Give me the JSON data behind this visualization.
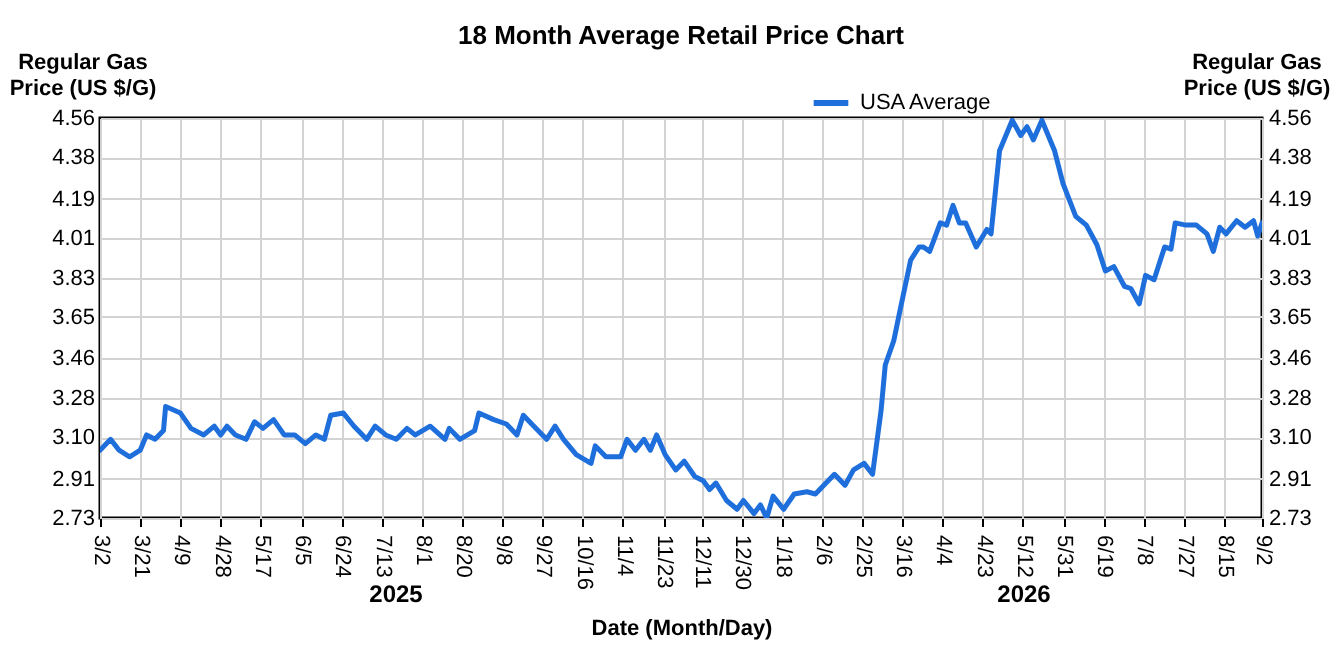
{
  "chart_data": {
    "type": "line",
    "title": "18 Month Average Retail Price Chart",
    "xlabel": "Date (Month/Day)",
    "ylabel": "Regular Gas Price (US $/G)",
    "y2label": "Regular Gas Price (US $/G)",
    "annotations": [
      "2025",
      "2026"
    ],
    "x": [
      "2025-03-02",
      "2025-03-07",
      "2025-03-11",
      "2025-03-16",
      "2025-03-21",
      "2025-03-24",
      "2025-03-28",
      "2025-04-01",
      "2025-04-02",
      "2025-04-09",
      "2025-04-14",
      "2025-04-20",
      "2025-04-25",
      "2025-04-28",
      "2025-05-01",
      "2025-05-05",
      "2025-05-10",
      "2025-05-14",
      "2025-05-18",
      "2025-05-23",
      "2025-05-28",
      "2025-06-02",
      "2025-06-07",
      "2025-06-12",
      "2025-06-16",
      "2025-06-19",
      "2025-06-25",
      "2025-06-30",
      "2025-07-06",
      "2025-07-10",
      "2025-07-15",
      "2025-07-20",
      "2025-07-25",
      "2025-07-29",
      "2025-08-05",
      "2025-08-12",
      "2025-08-14",
      "2025-08-19",
      "2025-08-26",
      "2025-08-28",
      "2025-09-04",
      "2025-09-10",
      "2025-09-15",
      "2025-09-18",
      "2025-09-23",
      "2025-09-29",
      "2025-10-03",
      "2025-10-07",
      "2025-10-13",
      "2025-10-20",
      "2025-10-22",
      "2025-10-27",
      "2025-11-03",
      "2025-11-06",
      "2025-11-10",
      "2025-11-14",
      "2025-11-17",
      "2025-11-20",
      "2025-11-24",
      "2025-11-29",
      "2025-12-03",
      "2025-12-08",
      "2025-12-12",
      "2025-12-15",
      "2025-12-18",
      "2025-12-23",
      "2025-12-28",
      "2025-12-31",
      "2026-01-05",
      "2026-01-08",
      "2026-01-11",
      "2026-01-14",
      "2026-01-19",
      "2026-01-24",
      "2026-01-30",
      "2026-02-03",
      "2026-02-08",
      "2026-02-12",
      "2026-02-17",
      "2026-02-21",
      "2026-02-26",
      "2026-03-02",
      "2026-03-06",
      "2026-03-08",
      "2026-03-12",
      "2026-03-15",
      "2026-03-20",
      "2026-03-24",
      "2026-03-26",
      "2026-03-29",
      "2026-04-03",
      "2026-04-06",
      "2026-04-09",
      "2026-04-12",
      "2026-04-15",
      "2026-04-20",
      "2026-04-25",
      "2026-04-27",
      "2026-05-01",
      "2026-05-07",
      "2026-05-11",
      "2026-05-14",
      "2026-05-17",
      "2026-05-21",
      "2026-05-27",
      "2026-05-31",
      "2026-06-06",
      "2026-06-11",
      "2026-06-16",
      "2026-06-20",
      "2026-06-24",
      "2026-06-29",
      "2026-07-02",
      "2026-07-06",
      "2026-07-09",
      "2026-07-13",
      "2026-07-18",
      "2026-07-21",
      "2026-07-23",
      "2026-07-28",
      "2026-08-02",
      "2026-08-07",
      "2026-08-10",
      "2026-08-13",
      "2026-08-16",
      "2026-08-21",
      "2026-08-25",
      "2026-08-29",
      "2026-08-31",
      "2026-09-02"
    ],
    "series": [
      {
        "name": "USA Average",
        "color": "#1e6fdc",
        "values": [
          3.04,
          3.09,
          3.04,
          3.01,
          3.04,
          3.11,
          3.09,
          3.13,
          3.24,
          3.21,
          3.14,
          3.11,
          3.15,
          3.11,
          3.15,
          3.11,
          3.09,
          3.17,
          3.14,
          3.18,
          3.11,
          3.11,
          3.07,
          3.11,
          3.09,
          3.2,
          3.21,
          3.15,
          3.09,
          3.15,
          3.11,
          3.09,
          3.14,
          3.11,
          3.15,
          3.09,
          3.14,
          3.09,
          3.13,
          3.21,
          3.18,
          3.16,
          3.11,
          3.2,
          3.15,
          3.09,
          3.15,
          3.09,
          3.02,
          2.98,
          3.06,
          3.01,
          3.01,
          3.09,
          3.04,
          3.09,
          3.04,
          3.11,
          3.02,
          2.95,
          2.99,
          2.92,
          2.9,
          2.86,
          2.89,
          2.81,
          2.77,
          2.81,
          2.75,
          2.79,
          2.73,
          2.83,
          2.77,
          2.84,
          2.85,
          2.84,
          2.89,
          2.93,
          2.88,
          2.95,
          2.98,
          2.93,
          3.22,
          3.43,
          3.54,
          3.68,
          3.91,
          3.97,
          3.97,
          3.95,
          4.08,
          4.07,
          4.16,
          4.08,
          4.08,
          3.97,
          4.05,
          4.03,
          4.41,
          4.55,
          4.48,
          4.52,
          4.46,
          4.55,
          4.41,
          4.26,
          4.11,
          4.07,
          3.98,
          3.86,
          3.88,
          3.79,
          3.78,
          3.71,
          3.84,
          3.82,
          3.97,
          3.96,
          4.08,
          4.07,
          4.07,
          4.03,
          3.95,
          4.06,
          4.03,
          4.09,
          4.06,
          4.09,
          4.02,
          4.08
        ]
      }
    ],
    "xlim": [
      "2025-03-02",
      "2026-09-02"
    ],
    "xticks": [
      {
        "value": "2025-03-02",
        "label": "3/2"
      },
      {
        "value": "2025-03-21",
        "label": "3/21"
      },
      {
        "value": "2025-04-09",
        "label": "4/9"
      },
      {
        "value": "2025-04-28",
        "label": "4/28"
      },
      {
        "value": "2025-05-17",
        "label": "5/17"
      },
      {
        "value": "2025-06-05",
        "label": "6/5"
      },
      {
        "value": "2025-06-24",
        "label": "6/24"
      },
      {
        "value": "2025-07-13",
        "label": "7/13"
      },
      {
        "value": "2025-08-01",
        "label": "8/1"
      },
      {
        "value": "2025-08-20",
        "label": "8/20"
      },
      {
        "value": "2025-09-08",
        "label": "9/8"
      },
      {
        "value": "2025-09-27",
        "label": "9/27"
      },
      {
        "value": "2025-10-16",
        "label": "10/16"
      },
      {
        "value": "2025-11-04",
        "label": "11/4"
      },
      {
        "value": "2025-11-23",
        "label": "11/23"
      },
      {
        "value": "2025-12-11",
        "label": "12/11"
      },
      {
        "value": "2025-12-30",
        "label": "12/30"
      },
      {
        "value": "2026-01-18",
        "label": "1/18"
      },
      {
        "value": "2026-02-06",
        "label": "2/6"
      },
      {
        "value": "2026-02-25",
        "label": "2/25"
      },
      {
        "value": "2026-03-16",
        "label": "3/16"
      },
      {
        "value": "2026-04-04",
        "label": "4/4"
      },
      {
        "value": "2026-04-23",
        "label": "4/23"
      },
      {
        "value": "2026-05-12",
        "label": "5/12"
      },
      {
        "value": "2026-05-31",
        "label": "5/31"
      },
      {
        "value": "2026-06-19",
        "label": "6/19"
      },
      {
        "value": "2026-07-08",
        "label": "7/8"
      },
      {
        "value": "2026-07-27",
        "label": "7/27"
      },
      {
        "value": "2026-08-15",
        "label": "8/15"
      },
      {
        "value": "2026-09-02",
        "label": "9/2"
      }
    ],
    "ylim": [
      2.73,
      4.56
    ],
    "yticks": [
      2.73,
      2.91,
      {
        "value": 3.1,
        "label": "3.10"
      },
      3.28,
      3.46,
      3.65,
      3.83,
      4.01,
      4.19,
      4.38,
      4.56
    ],
    "y2lim": [
      2.73,
      4.56
    ],
    "y2ticks": [
      2.73,
      2.91,
      {
        "value": 3.1,
        "label": "3.10"
      },
      3.28,
      3.46,
      3.65,
      3.83,
      4.01,
      4.19,
      4.38,
      4.56
    ],
    "grid": true,
    "legend": "top",
    "marker": "none",
    "line_style": "solid"
  }
}
